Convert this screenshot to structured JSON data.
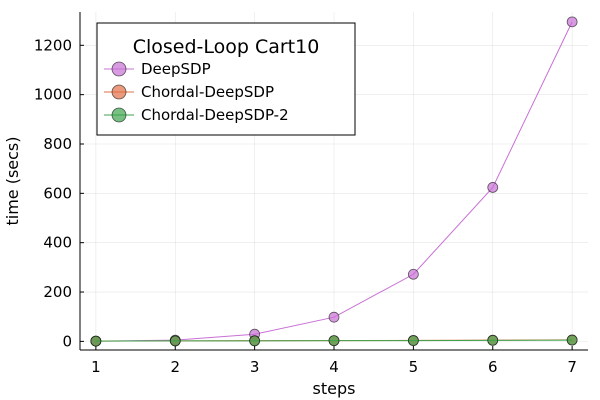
{
  "chart_data": {
    "type": "line",
    "legend_title": "Closed-Loop Cart10",
    "xlabel": "steps",
    "ylabel": "time (secs)",
    "xlim": [
      0.8,
      7.2
    ],
    "ylim": [
      -35,
      1335
    ],
    "xticks": [
      1,
      2,
      3,
      4,
      5,
      6,
      7
    ],
    "yticks": [
      0,
      200,
      400,
      600,
      800,
      1000,
      1200
    ],
    "grid": true,
    "legend_position": "top-left",
    "x": [
      1,
      2,
      3,
      4,
      5,
      6,
      7
    ],
    "series": [
      {
        "name": "DeepSDP",
        "color": "#c871d4",
        "values": [
          1,
          5,
          29,
          98,
          272,
          624,
          1295
        ]
      },
      {
        "name": "Chordal-DeepSDP",
        "color": "#e26f46",
        "values": [
          1,
          2,
          3,
          3,
          4,
          5,
          6
        ]
      },
      {
        "name": "Chordal-DeepSDP-2",
        "color": "#3da44d",
        "values": [
          1,
          2,
          2,
          3,
          3,
          4,
          5
        ]
      }
    ]
  }
}
